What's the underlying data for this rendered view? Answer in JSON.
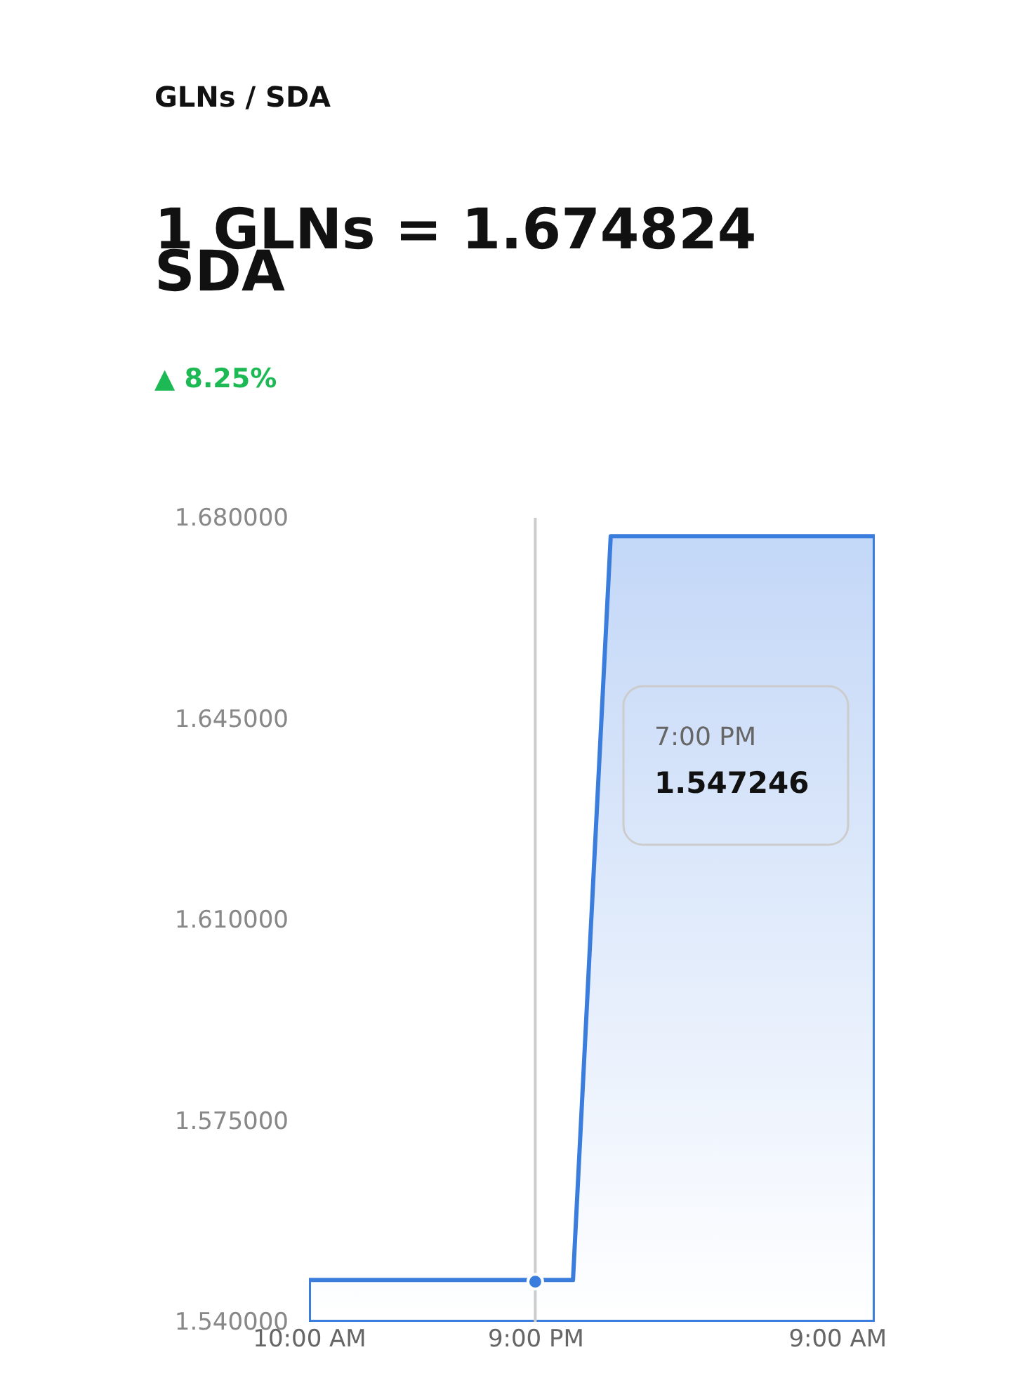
{
  "chart_data": {
    "type": "area",
    "title": "GLNs / SDA",
    "subtitle": "1 GLNs = 1.674824 SDA",
    "annotations": [
      "▲ 8.25%",
      "7:00 PM",
      "1.547246"
    ],
    "categories": [
      "10:00 AM",
      null,
      null,
      null,
      null,
      null,
      "9:00 PM",
      null,
      null,
      null,
      null,
      null,
      null,
      null,
      "9:00 AM",
      null
    ],
    "series": [
      {
        "color": "#3b7ddd",
        "values": [
          1.5473,
          1.5473,
          1.5473,
          1.5473,
          1.5473,
          1.5473,
          1.5473,
          1.5473,
          1.6768,
          1.6768,
          1.6768,
          1.6768,
          1.6768,
          1.6768,
          1.6768,
          1.6768
        ]
      },
      {
        "type": "scatter",
        "marker": "circle",
        "color": "#3b7ddd",
        "values": [
          null,
          null,
          null,
          null,
          null,
          null,
          1.547,
          null,
          null,
          null,
          null,
          null,
          null,
          null,
          null,
          null
        ]
      }
    ],
    "ylim": [
      1.54,
      1.68
    ],
    "yticks": [
      {
        "value": 1.54,
        "label": "1.540000"
      },
      {
        "value": 1.575,
        "label": "1.575000"
      },
      {
        "value": 1.61,
        "label": "1.610000"
      },
      {
        "value": 1.645,
        "label": "1.645000"
      },
      {
        "value": 1.68,
        "label": "1.680000"
      }
    ],
    "ref_lines": [
      {
        "axis": "x",
        "value": "9:00 PM",
        "color": "#cccccc"
      }
    ],
    "grid": false,
    "legend": false,
    "line_style": "solid"
  }
}
